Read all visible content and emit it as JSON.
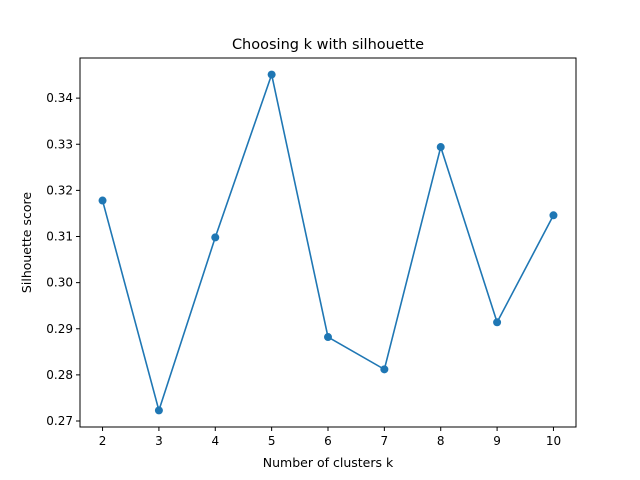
{
  "chart_data": {
    "type": "line",
    "title": "Choosing k with silhouette",
    "xlabel": "Number of clusters k",
    "ylabel": "Silhouette score",
    "x": [
      2,
      3,
      4,
      5,
      6,
      7,
      8,
      9,
      10
    ],
    "series": [
      {
        "values": [
          0.3178,
          0.2723,
          0.3098,
          0.3451,
          0.2882,
          0.2812,
          0.3294,
          0.2914,
          0.3146
        ],
        "color": "#1f77b4",
        "marker": "circle"
      }
    ],
    "xticks": [
      2,
      3,
      4,
      5,
      6,
      7,
      8,
      9,
      10
    ],
    "yticks": [
      0.27,
      0.28,
      0.29,
      0.3,
      0.31,
      0.32,
      0.33,
      0.34
    ],
    "ytick_labels": [
      "0.27",
      "0.28",
      "0.29",
      "0.30",
      "0.31",
      "0.32",
      "0.33",
      "0.34"
    ],
    "xlim": [
      1.6,
      10.4
    ],
    "ylim": [
      0.2687,
      0.3487
    ],
    "grid": false,
    "legend": "none"
  }
}
